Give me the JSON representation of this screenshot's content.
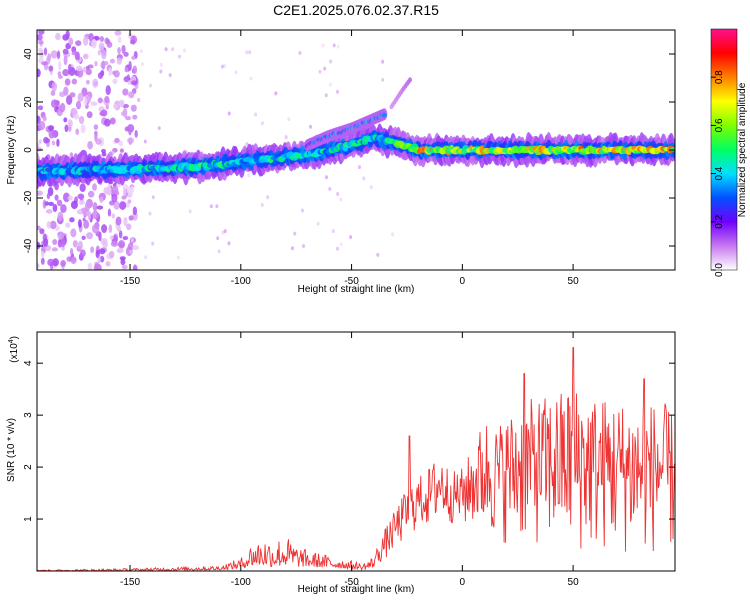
{
  "figure": {
    "title": "C2E1.2025.076.02.37.R15"
  },
  "chart_data": [
    {
      "type": "heatmap",
      "name": "spectrogram",
      "xlabel": "Height of straight line (km)",
      "ylabel": "Frequency (Hz)",
      "xlim": [
        -192,
        96
      ],
      "ylim": [
        -50,
        50
      ],
      "xticks": [
        -150,
        -100,
        -50,
        0,
        50
      ],
      "yticks": [
        -40,
        -20,
        0,
        20,
        40
      ],
      "colorbar": {
        "label": "Normalized spectral amplitude",
        "range": [
          0,
          1
        ],
        "ticks": [
          "0.0",
          "0.2",
          "0.4",
          "0.6",
          "0.8"
        ],
        "tick_values": [
          0,
          0.2,
          0.4,
          0.6,
          0.8
        ],
        "colors": [
          "#ffffff",
          "#c878f0",
          "#7000ff",
          "#0050ff",
          "#00e0ff",
          "#00ff60",
          "#80ff00",
          "#ffff00",
          "#ff8000",
          "#ff0000",
          "#ff1090"
        ]
      },
      "ridge": {
        "description_points_x": [
          -192,
          -150,
          -120,
          -100,
          -70,
          -50,
          -40,
          -30,
          -20,
          0,
          50,
          96
        ],
        "frequency_hz": [
          -9,
          -8,
          -7,
          -5,
          -2,
          2,
          5,
          3,
          0,
          0,
          0,
          0
        ],
        "peak_amplitude": [
          0.45,
          0.5,
          0.55,
          0.55,
          0.5,
          0.55,
          0.5,
          0.55,
          0.85,
          0.8,
          0.85,
          0.85
        ]
      },
      "branch": {
        "x": [
          -70,
          -60,
          -50,
          -40,
          -35
        ],
        "frequency_hz": [
          2,
          6,
          9,
          13,
          15
        ],
        "peak_amplitude": [
          0.35,
          0.4,
          0.45,
          0.5,
          0.45
        ]
      },
      "faint_trail": {
        "x": [
          -32,
          -27,
          -23
        ],
        "frequency_hz": [
          18,
          25,
          30
        ],
        "peak_amplitude": [
          0.08,
          0.1,
          0.12
        ]
      }
    },
    {
      "type": "line",
      "name": "snr",
      "xlabel": "Height of straight line (km)",
      "ylabel": "SNR (10 * v/v)",
      "yscale_label": "(x10",
      "yscale_exp": "4",
      "yscale_close": ")",
      "xlim": [
        -192,
        96
      ],
      "ylim": [
        0,
        4.6
      ],
      "xticks": [
        -150,
        -100,
        -50,
        0,
        50
      ],
      "yticks": [
        1,
        2,
        3,
        4
      ],
      "color": "#ee3333",
      "envelope": {
        "x": [
          -192,
          -150,
          -110,
          -100,
          -95,
          -90,
          -85,
          -80,
          -75,
          -70,
          -60,
          -50,
          -45,
          -40,
          -35,
          -30,
          -25,
          -20,
          -15,
          -10,
          -5,
          0,
          5,
          10,
          15,
          20,
          30,
          40,
          50,
          60,
          70,
          80,
          90,
          96
        ],
        "y": [
          0.02,
          0.05,
          0.1,
          0.25,
          0.55,
          0.65,
          0.6,
          0.7,
          0.5,
          0.4,
          0.3,
          0.2,
          0.15,
          0.3,
          0.8,
          1.2,
          1.6,
          1.8,
          2.0,
          2.3,
          1.9,
          2.0,
          2.4,
          3.0,
          2.8,
          3.0,
          3.3,
          3.4,
          3.6,
          3.4,
          3.3,
          3.2,
          3.3,
          3.0
        ],
        "floor": [
          0.0,
          0.0,
          0.02,
          0.05,
          0.1,
          0.1,
          0.08,
          0.1,
          0.08,
          0.08,
          0.06,
          0.04,
          0.02,
          0.05,
          0.2,
          0.4,
          0.6,
          0.8,
          0.8,
          0.9,
          0.9,
          0.8,
          0.8,
          0.6,
          0.6,
          0.5,
          0.5,
          0.4,
          0.3,
          0.3,
          0.3,
          0.3,
          0.3,
          0.3
        ]
      },
      "peaks": [
        {
          "x": -24,
          "y": 2.6
        },
        {
          "x": 28,
          "y": 3.8
        },
        {
          "x": 50,
          "y": 4.3
        },
        {
          "x": 82,
          "y": 3.7
        }
      ]
    }
  ]
}
